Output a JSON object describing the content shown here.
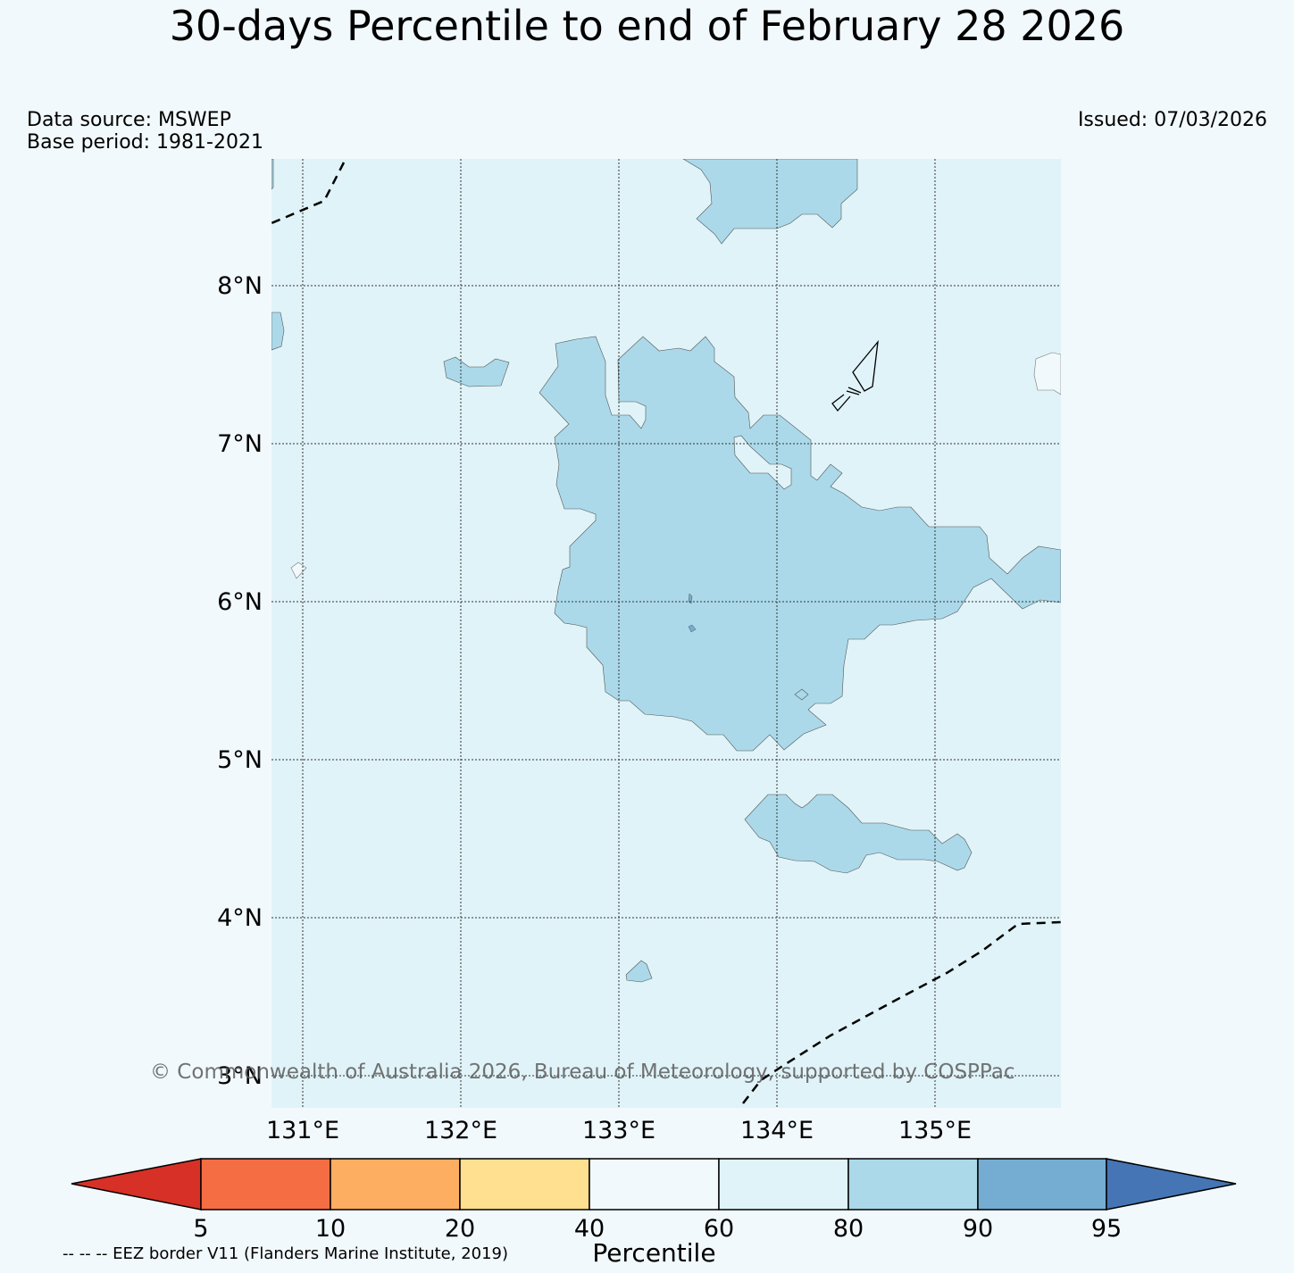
{
  "title": "30-days Percentile to end of February 28 2026",
  "data_source": "Data source: MSWEP",
  "base_period": "Base period: 1981-2021",
  "issued": "Issued: 07/03/2026",
  "copyright": "© Commonwealth of Australia 2026, Bureau of Meteorology, supported by COSPPac",
  "eez_note": "-- -- -- EEZ border V11 (Flanders Marine Institute, 2019)",
  "map": {
    "lat_range": [
      2.8,
      8.8
    ],
    "lon_range": [
      130.8,
      135.8
    ],
    "background_category": "60-80",
    "lat_labels": [
      "3°N",
      "4°N",
      "5°N",
      "6°N",
      "7°N",
      "8°N"
    ],
    "lon_labels": [
      "131°E",
      "132°E",
      "133°E",
      "134°E",
      "135°E"
    ]
  },
  "colorbar": {
    "label": "Percentile",
    "ticks": [
      "5",
      "10",
      "20",
      "40",
      "60",
      "80",
      "90",
      "95"
    ],
    "colors": {
      "below_5": "#d73027",
      "5_10": "#f46d43",
      "10_20": "#fdae61",
      "20_40": "#fee090",
      "40_60": "#f2f9fc",
      "60_80": "#e0f3f8",
      "80_90": "#abd9e9",
      "90_95": "#74add1",
      "above_95": "#4575b4"
    }
  }
}
